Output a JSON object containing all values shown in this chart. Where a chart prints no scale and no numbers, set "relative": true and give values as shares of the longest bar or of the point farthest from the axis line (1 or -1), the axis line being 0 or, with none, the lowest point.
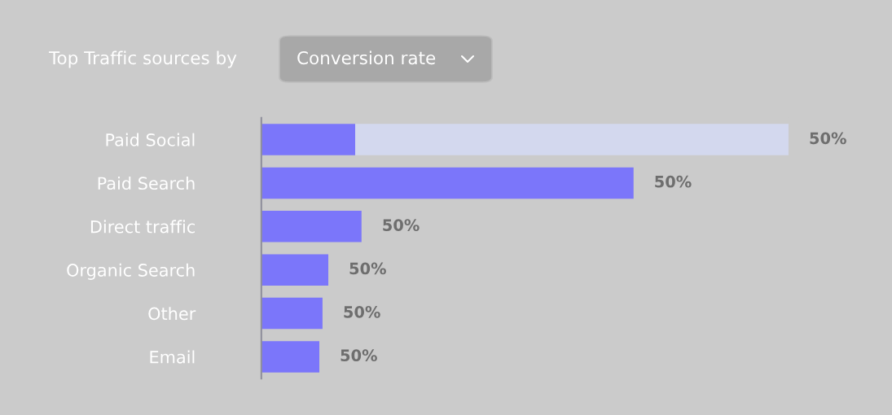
{
  "chart_data": {
    "type": "bar",
    "orientation": "horizontal",
    "stacked": true,
    "relative": true,
    "title": "Top Traffic sources by",
    "subtitle": "Conversion rate",
    "categories": [
      "Paid Social",
      "Paid Search",
      "Direct traffic",
      "Organic Search",
      "Other",
      "Email"
    ],
    "series": [
      {
        "color": "#7b76fa",
        "values": [
          0.178,
          0.706,
          0.19,
          0.127,
          0.116,
          0.11
        ]
      },
      {
        "color": "#d3d8ee",
        "values": [
          0.822,
          null,
          null,
          null,
          null,
          null
        ]
      }
    ],
    "annotations": [
      {
        "text": "50%",
        "x": 1,
        "y": "Paid Social"
      },
      {
        "text": "50%",
        "x": 0.706,
        "y": "Paid Search"
      },
      {
        "text": "50%",
        "x": 0.19,
        "y": "Direct traffic"
      },
      {
        "text": "50%",
        "x": 0.127,
        "y": "Organic Search"
      },
      {
        "text": "50%",
        "x": 0.116,
        "y": "Other"
      },
      {
        "text": "50%",
        "x": 0.11,
        "y": "Email"
      }
    ]
  }
}
